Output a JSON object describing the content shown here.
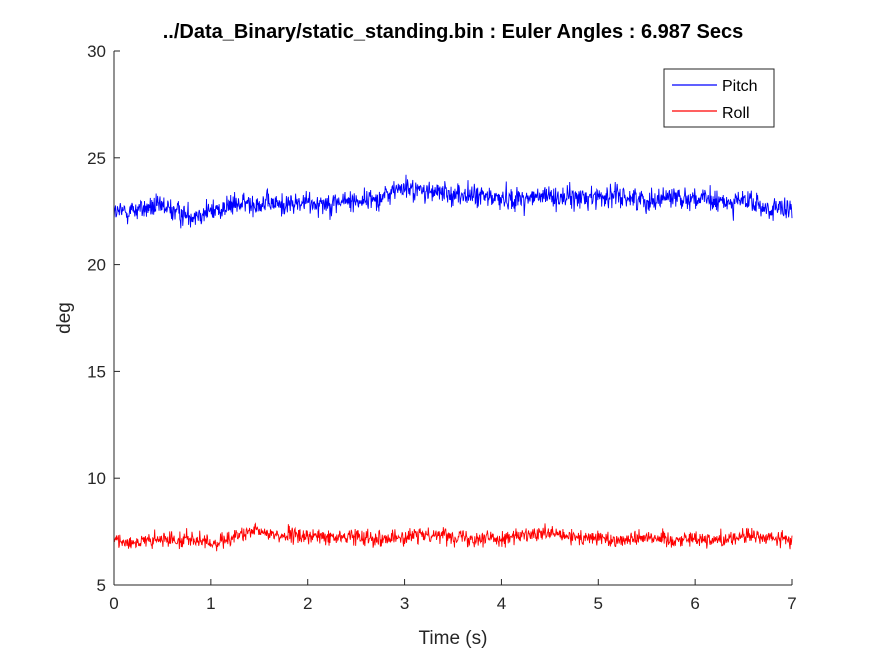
{
  "chart_data": {
    "type": "line",
    "title": "../Data_Binary/static_standing.bin : Euler Angles : 6.987 Secs",
    "xlabel": "Time (s)",
    "ylabel": "deg",
    "xlim": [
      0,
      7
    ],
    "ylim": [
      5,
      30
    ],
    "xticks": [
      "0",
      "1",
      "2",
      "3",
      "4",
      "5",
      "6",
      "7"
    ],
    "yticks": [
      "5",
      "10",
      "15",
      "20",
      "25",
      "30"
    ],
    "legend_placement": "top-right",
    "grid": false,
    "series": [
      {
        "name": "Pitch",
        "color": "#0000ff",
        "x": [
          0,
          0.25,
          0.5,
          0.75,
          1.0,
          1.25,
          1.5,
          1.75,
          2.0,
          2.25,
          2.5,
          2.75,
          2.95,
          3.25,
          3.5,
          3.75,
          4.0,
          4.25,
          4.5,
          4.75,
          5.0,
          5.25,
          5.5,
          5.75,
          6.0,
          6.25,
          6.5,
          6.75,
          7.0
        ],
        "values": [
          22.4,
          22.6,
          22.7,
          22.3,
          22.5,
          22.8,
          22.9,
          22.8,
          22.9,
          22.9,
          23.0,
          23.1,
          23.6,
          23.4,
          23.3,
          23.2,
          23.1,
          23.1,
          23.2,
          23.1,
          23.2,
          23.2,
          23.0,
          23.2,
          23.1,
          22.9,
          23.0,
          22.6,
          22.5
        ]
      },
      {
        "name": "Roll",
        "color": "#ff0000",
        "x": [
          0,
          0.25,
          0.5,
          0.75,
          1.0,
          1.25,
          1.5,
          1.75,
          2.0,
          2.25,
          2.5,
          2.75,
          3.0,
          3.25,
          3.5,
          3.75,
          4.0,
          4.25,
          4.5,
          4.75,
          5.0,
          5.25,
          5.5,
          5.75,
          6.0,
          6.25,
          6.5,
          6.75,
          7.0
        ],
        "values": [
          7.1,
          7.0,
          7.1,
          7.2,
          6.9,
          7.3,
          7.5,
          7.3,
          7.3,
          7.2,
          7.3,
          7.2,
          7.2,
          7.4,
          7.3,
          7.2,
          7.2,
          7.3,
          7.4,
          7.2,
          7.2,
          7.1,
          7.3,
          7.1,
          7.2,
          7.1,
          7.3,
          7.2,
          7.1
        ]
      }
    ]
  }
}
